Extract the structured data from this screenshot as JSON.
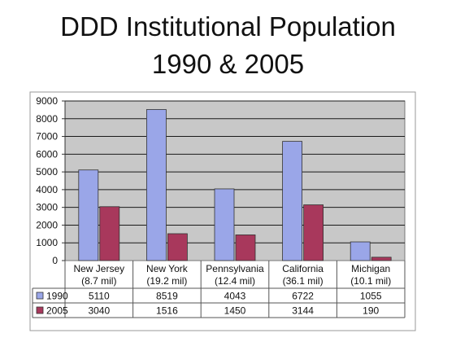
{
  "chart_data": {
    "type": "bar",
    "title_line1": "DDD Institutional Population",
    "title_line2": "1990 & 2005",
    "categories": [
      "New Jersey",
      "New York",
      "Pennsylvania",
      "California",
      "Michigan"
    ],
    "category_sublabels": [
      "(8.7 mil)",
      "(19.2 mil)",
      "(12.4 mil)",
      "(36.1 mil)",
      "(10.1 mil)"
    ],
    "series": [
      {
        "name": "1990",
        "values": [
          5110,
          8519,
          4043,
          6722,
          1055
        ],
        "color": "#9aa6e8"
      },
      {
        "name": "2005",
        "values": [
          3040,
          1516,
          1450,
          3144,
          190
        ],
        "color": "#a8385c"
      }
    ],
    "ylim": [
      0,
      9000
    ],
    "yticks": [
      0,
      1000,
      2000,
      3000,
      4000,
      5000,
      6000,
      7000,
      8000,
      9000
    ],
    "grid": true,
    "legend": "data table below chart",
    "plot_background": "#c8c8c8"
  }
}
